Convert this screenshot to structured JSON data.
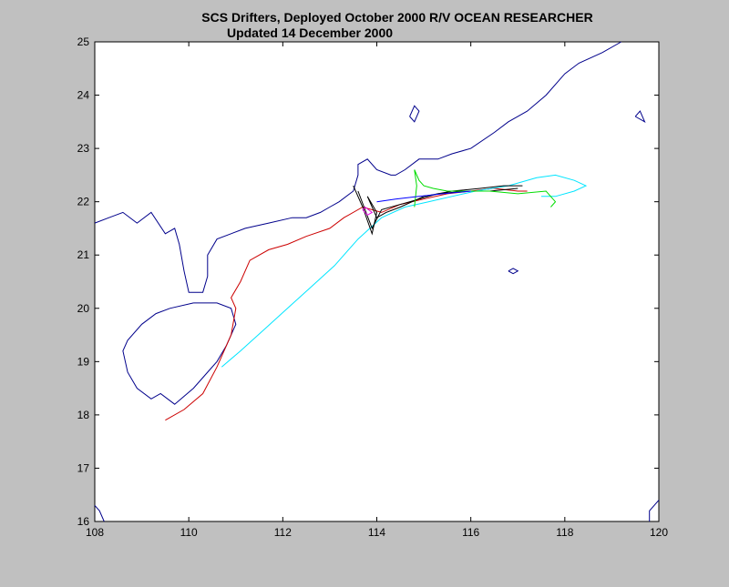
{
  "title": "SCS Drifters, Deployed October 2000    R/V OCEAN RESEARCHER",
  "subtitle": "Updated 14 December 2000",
  "colors": {
    "background": "#c0c0c0",
    "plot_background": "#ffffff",
    "coastline": "#00008b",
    "drifter_red": "#cc0000",
    "drifter_cyan": "#00e5ff",
    "drifter_black": "#000000",
    "drifter_green": "#00dd00",
    "drifter_magenta": "#e000e0",
    "drifter_blue": "#0000ff"
  },
  "chart_data": {
    "type": "line",
    "x_range": [
      108,
      120
    ],
    "y_range": [
      16,
      25
    ],
    "x_ticks": [
      "108",
      "110",
      "112",
      "114",
      "116",
      "118",
      "120"
    ],
    "y_ticks": [
      "16",
      "17",
      "18",
      "19",
      "20",
      "21",
      "22",
      "23",
      "24",
      "25"
    ],
    "coastlines": [
      [
        [
          108,
          21.6
        ],
        [
          108.3,
          21.7
        ],
        [
          108.6,
          21.8
        ],
        [
          108.9,
          21.6
        ],
        [
          109.2,
          21.8
        ],
        [
          109.5,
          21.4
        ],
        [
          109.7,
          21.5
        ],
        [
          109.8,
          21.2
        ],
        [
          109.9,
          20.7
        ],
        [
          110.0,
          20.3
        ],
        [
          110.3,
          20.3
        ],
        [
          110.4,
          20.6
        ],
        [
          110.4,
          21.0
        ],
        [
          110.6,
          21.3
        ],
        [
          110.9,
          21.4
        ],
        [
          111.2,
          21.5
        ],
        [
          111.7,
          21.6
        ],
        [
          112.2,
          21.7
        ],
        [
          112.5,
          21.7
        ],
        [
          112.8,
          21.8
        ],
        [
          113.0,
          21.9
        ],
        [
          113.2,
          22.0
        ],
        [
          113.5,
          22.2
        ],
        [
          113.6,
          22.5
        ],
        [
          113.6,
          22.7
        ],
        [
          113.8,
          22.8
        ],
        [
          114.0,
          22.6
        ],
        [
          114.3,
          22.5
        ],
        [
          114.4,
          22.5
        ],
        [
          114.6,
          22.6
        ],
        [
          114.9,
          22.8
        ],
        [
          115.3,
          22.8
        ],
        [
          115.6,
          22.9
        ],
        [
          116.0,
          23.0
        ],
        [
          116.5,
          23.3
        ],
        [
          116.8,
          23.5
        ],
        [
          117.2,
          23.7
        ],
        [
          117.6,
          24.0
        ],
        [
          118.0,
          24.4
        ],
        [
          118.3,
          24.6
        ],
        [
          118.8,
          24.8
        ],
        [
          119.2,
          25.0
        ]
      ],
      [
        [
          110.1,
          20.1
        ],
        [
          110.6,
          20.1
        ],
        [
          110.9,
          20.0
        ],
        [
          111.0,
          19.7
        ],
        [
          110.8,
          19.3
        ],
        [
          110.6,
          19.0
        ],
        [
          110.4,
          18.8
        ],
        [
          110.1,
          18.5
        ],
        [
          109.7,
          18.2
        ],
        [
          109.4,
          18.4
        ],
        [
          109.2,
          18.3
        ],
        [
          108.9,
          18.5
        ],
        [
          108.7,
          18.8
        ],
        [
          108.6,
          19.2
        ],
        [
          108.7,
          19.4
        ],
        [
          109.0,
          19.7
        ],
        [
          109.3,
          19.9
        ],
        [
          109.6,
          20.0
        ],
        [
          110.1,
          20.1
        ]
      ],
      [
        [
          114.7,
          23.6
        ],
        [
          114.8,
          23.8
        ],
        [
          114.9,
          23.7
        ],
        [
          114.8,
          23.5
        ],
        [
          114.7,
          23.6
        ]
      ],
      [
        [
          119.5,
          23.6
        ],
        [
          119.6,
          23.7
        ],
        [
          119.7,
          23.5
        ],
        [
          119.5,
          23.6
        ]
      ],
      [
        [
          116.8,
          20.7
        ],
        [
          116.9,
          20.75
        ],
        [
          117.0,
          20.7
        ],
        [
          116.9,
          20.65
        ],
        [
          116.8,
          20.7
        ]
      ],
      [
        [
          108.0,
          16.3
        ],
        [
          108.1,
          16.2
        ],
        [
          108.2,
          16.0
        ]
      ],
      [
        [
          120,
          16.4
        ],
        [
          119.8,
          16.2
        ],
        [
          119.8,
          16.0
        ]
      ]
    ],
    "series": [
      {
        "color": "#cc0000",
        "points": [
          [
            109.5,
            17.9
          ],
          [
            109.9,
            18.1
          ],
          [
            110.3,
            18.4
          ],
          [
            110.6,
            18.9
          ],
          [
            110.9,
            19.5
          ],
          [
            111.0,
            20.0
          ],
          [
            110.9,
            20.2
          ],
          [
            111.1,
            20.5
          ],
          [
            111.3,
            20.9
          ],
          [
            111.7,
            21.1
          ],
          [
            112.1,
            21.2
          ],
          [
            112.5,
            21.35
          ],
          [
            113.0,
            21.5
          ],
          [
            113.3,
            21.7
          ],
          [
            113.7,
            21.9
          ],
          [
            114.1,
            21.8
          ],
          [
            114.5,
            21.95
          ],
          [
            115.0,
            22.05
          ],
          [
            115.5,
            22.15
          ],
          [
            116.0,
            22.2
          ],
          [
            116.5,
            22.25
          ],
          [
            117.0,
            22.2
          ],
          [
            117.2,
            22.2
          ]
        ]
      },
      {
        "color": "#00e5ff",
        "points": [
          [
            110.7,
            18.9
          ],
          [
            111.1,
            19.2
          ],
          [
            111.6,
            19.6
          ],
          [
            112.1,
            20.0
          ],
          [
            112.6,
            20.4
          ],
          [
            113.1,
            20.8
          ],
          [
            113.6,
            21.3
          ],
          [
            114.1,
            21.7
          ],
          [
            114.6,
            21.9
          ],
          [
            115.1,
            22.0
          ],
          [
            115.6,
            22.1
          ],
          [
            116.1,
            22.2
          ],
          [
            116.8,
            22.3
          ],
          [
            117.4,
            22.45
          ],
          [
            117.8,
            22.5
          ],
          [
            118.2,
            22.4
          ],
          [
            118.45,
            22.3
          ],
          [
            118.2,
            22.2
          ],
          [
            117.8,
            22.1
          ],
          [
            117.5,
            22.1
          ]
        ]
      },
      {
        "color": "#000000",
        "points": [
          [
            113.5,
            22.3
          ],
          [
            113.7,
            21.9
          ],
          [
            113.9,
            21.4
          ],
          [
            114.0,
            21.8
          ],
          [
            113.8,
            22.1
          ],
          [
            114.0,
            21.7
          ],
          [
            114.2,
            21.8
          ],
          [
            114.5,
            21.9
          ],
          [
            115.0,
            22.1
          ],
          [
            115.6,
            22.2
          ],
          [
            116.2,
            22.25
          ],
          [
            116.7,
            22.3
          ],
          [
            117.1,
            22.3
          ]
        ]
      },
      {
        "color": "#000000",
        "points": [
          [
            113.6,
            22.2
          ],
          [
            113.9,
            21.5
          ],
          [
            114.1,
            21.85
          ],
          [
            114.7,
            22.0
          ],
          [
            115.3,
            22.15
          ],
          [
            115.9,
            22.2
          ],
          [
            116.4,
            22.2
          ],
          [
            117.0,
            22.25
          ]
        ]
      },
      {
        "color": "#00dd00",
        "points": [
          [
            114.8,
            21.9
          ],
          [
            114.85,
            22.3
          ],
          [
            114.8,
            22.6
          ],
          [
            114.9,
            22.4
          ],
          [
            115.0,
            22.3
          ],
          [
            115.2,
            22.25
          ],
          [
            115.5,
            22.2
          ],
          [
            115.9,
            22.2
          ],
          [
            116.4,
            22.2
          ],
          [
            117.0,
            22.15
          ],
          [
            117.6,
            22.2
          ],
          [
            117.8,
            22.0
          ],
          [
            117.7,
            21.9
          ]
        ]
      },
      {
        "color": "#e000e0",
        "points": [
          [
            113.7,
            21.85
          ],
          [
            113.8,
            21.75
          ],
          [
            113.9,
            21.8
          ],
          [
            113.75,
            21.9
          ],
          [
            113.7,
            21.85
          ]
        ]
      },
      {
        "color": "#0000ff",
        "points": [
          [
            114.0,
            22.0
          ],
          [
            114.4,
            22.05
          ],
          [
            114.9,
            22.1
          ],
          [
            115.4,
            22.15
          ],
          [
            116.0,
            22.2
          ]
        ]
      }
    ]
  }
}
